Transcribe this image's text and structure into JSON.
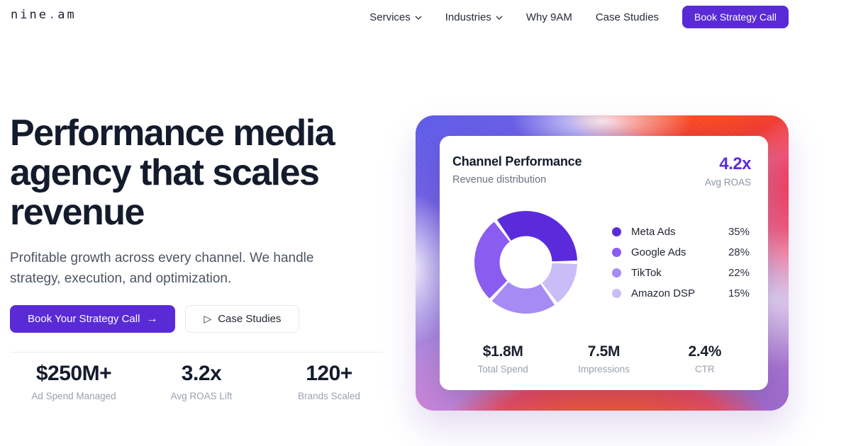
{
  "brand": {
    "logo_name": "nine",
    "logo_dot": ".",
    "logo_tld": "am"
  },
  "nav": {
    "items": [
      {
        "label": "Services",
        "has_dropdown": true
      },
      {
        "label": "Industries",
        "has_dropdown": true
      },
      {
        "label": "Why 9AM",
        "has_dropdown": false
      },
      {
        "label": "Case Studies",
        "has_dropdown": false
      }
    ],
    "cta_label": "Book Strategy Call"
  },
  "hero": {
    "title_line1": "Performance media",
    "title_line2": "agency that scales",
    "title_line3": "revenue",
    "subtitle": "Profitable growth across every channel. We handle strategy, execution, and optimization.",
    "primary_cta": "Book Your Strategy Call",
    "primary_cta_arrow": "→",
    "secondary_cta_icon": "▷",
    "secondary_cta": "Case Studies",
    "stats": [
      {
        "value": "$250M+",
        "label": "Ad Spend Managed"
      },
      {
        "value": "3.2x",
        "label": "Avg ROAS Lift"
      },
      {
        "value": "120+",
        "label": "Brands Scaled"
      }
    ]
  },
  "dashboard": {
    "title": "Channel Performance",
    "subtitle": "Revenue distribution",
    "roas_value": "4.2x",
    "roas_label": "Avg ROAS",
    "stats": [
      {
        "value": "$1.8M",
        "label": "Total Spend"
      },
      {
        "value": "7.5M",
        "label": "Impressions"
      },
      {
        "value": "2.4%",
        "label": "CTR"
      }
    ]
  },
  "chart_data": {
    "type": "pie",
    "donut": true,
    "title": "Channel Performance",
    "subtitle": "Revenue distribution",
    "categories": [
      "Meta Ads",
      "Google Ads",
      "TikTok",
      "Amazon DSP"
    ],
    "values": [
      35,
      28,
      22,
      15
    ],
    "value_labels": [
      "35%",
      "28%",
      "22%",
      "15%"
    ],
    "colors": [
      "#5b2bdb",
      "#8a5cf0",
      "#a78bf5",
      "#c9bdf8"
    ],
    "start_angle_deg": 0,
    "direction": "counterclockwise",
    "pad_angle_deg": 4,
    "inner_radius_ratio": 0.51,
    "legend_position": "right"
  },
  "colors": {
    "accent_purple": "#5a2ad6",
    "roas_purple": "#5b2be0",
    "heading": "#131b2c",
    "muted_text": "#99a1ad"
  }
}
